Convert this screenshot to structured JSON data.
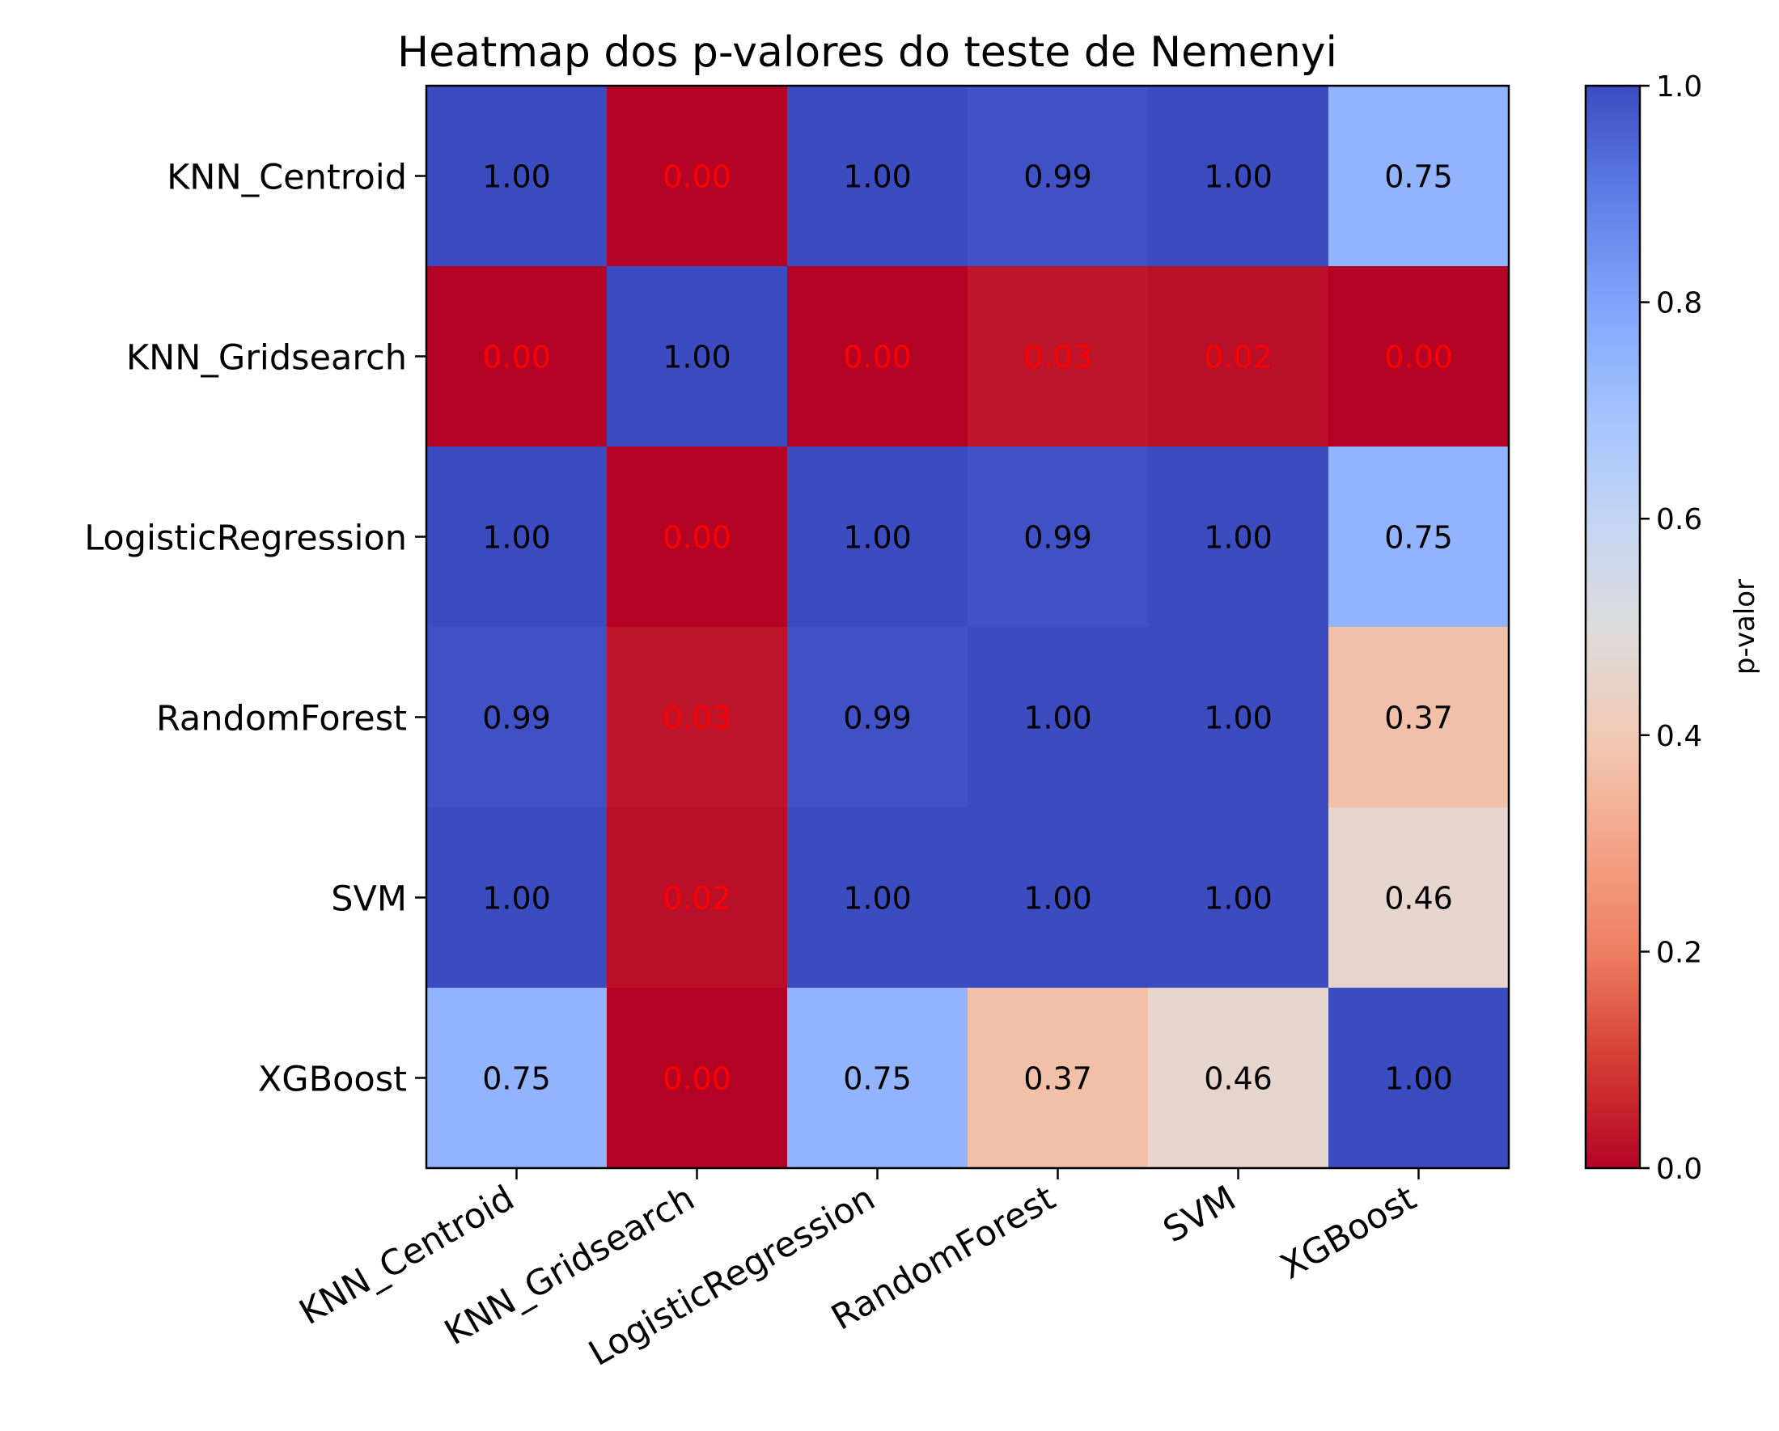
{
  "chart_data": {
    "type": "heatmap",
    "title": "Heatmap dos p-valores do teste de Nemenyi",
    "rows": [
      "KNN_Centroid",
      "KNN_Gridsearch",
      "LogisticRegression",
      "RandomForest",
      "SVM",
      "XGBoost"
    ],
    "columns": [
      "KNN_Centroid",
      "KNN_Gridsearch",
      "LogisticRegression",
      "RandomForest",
      "SVM",
      "XGBoost"
    ],
    "values": [
      [
        1.0,
        0.0,
        1.0,
        0.99,
        1.0,
        0.75
      ],
      [
        0.0,
        1.0,
        0.0,
        0.03,
        0.02,
        0.0
      ],
      [
        1.0,
        0.0,
        1.0,
        0.99,
        1.0,
        0.75
      ],
      [
        0.99,
        0.03,
        0.99,
        1.0,
        1.0,
        0.37
      ],
      [
        1.0,
        0.02,
        1.0,
        1.0,
        1.0,
        0.46
      ],
      [
        0.75,
        0.0,
        0.75,
        0.37,
        0.46,
        1.0
      ]
    ],
    "cell_labels": [
      [
        "1.00",
        "0.00",
        "1.00",
        "0.99",
        "1.00",
        "0.75"
      ],
      [
        "0.00",
        "1.00",
        "0.00",
        "0.03",
        "0.02",
        "0.00"
      ],
      [
        "1.00",
        "0.00",
        "1.00",
        "0.99",
        "1.00",
        "0.75"
      ],
      [
        "0.99",
        "0.03",
        "0.99",
        "1.00",
        "1.00",
        "0.37"
      ],
      [
        "1.00",
        "0.02",
        "1.00",
        "1.00",
        "1.00",
        "0.46"
      ],
      [
        "0.75",
        "0.00",
        "0.75",
        "0.37",
        "0.46",
        "1.00"
      ]
    ],
    "significant_label_color": "#ff0000",
    "default_label_color": "#000000",
    "colormap": "coolwarm_r",
    "colorbar": {
      "label": "p-valor",
      "range": [
        0.0,
        1.0
      ],
      "ticks": [
        "0.0",
        "0.2",
        "0.4",
        "0.6",
        "0.8",
        "1.0"
      ]
    },
    "grid": false
  }
}
